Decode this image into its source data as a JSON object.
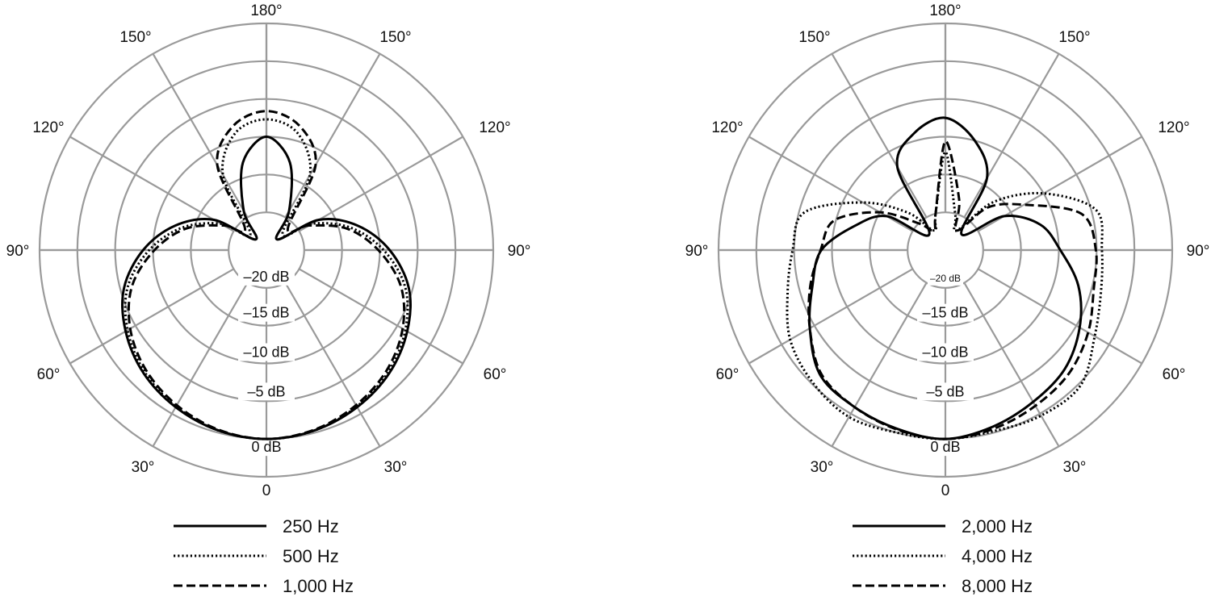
{
  "chart_data": [
    {
      "type": "polar",
      "angle_labels": [
        "180°",
        "150°",
        "150°",
        "120°",
        "120°",
        "90°",
        "90°",
        "60°",
        "60°",
        "30°",
        "30°",
        "0"
      ],
      "radial_labels": [
        "–20 dB",
        "–15 dB",
        "–10 dB",
        "–5 dB",
        "0 dB"
      ],
      "rlim": [
        -25,
        5
      ],
      "ring_values": [
        -20,
        -15,
        -10,
        -5,
        0,
        5
      ],
      "grid": true,
      "grid_color": "#9a9a9a",
      "legend_position": "bottom",
      "angles_deg": [
        0,
        15,
        30,
        45,
        60,
        75,
        90,
        105,
        120,
        135,
        150,
        165,
        180,
        195,
        210,
        225,
        240,
        255,
        270,
        285,
        300,
        315,
        330,
        345
      ],
      "series": [
        {
          "name": "250 Hz",
          "style": "solid",
          "values": [
            0,
            -0.3,
            -1,
            -2,
            -3.5,
            -5.5,
            -8.7,
            -12.5,
            -17,
            -23,
            -19,
            -13,
            -10,
            -13,
            -19,
            -23,
            -17,
            -12.5,
            -8.7,
            -5.5,
            -3.5,
            -2,
            -1,
            -0.3
          ]
        },
        {
          "name": "500 Hz",
          "style": "dotted",
          "values": [
            0,
            -0.3,
            -1.1,
            -2.2,
            -3.8,
            -6,
            -9.5,
            -13.5,
            -18,
            -22,
            -13.5,
            -9,
            -7.7,
            -9,
            -13.5,
            -22,
            -18,
            -13.5,
            -9.5,
            -6,
            -3.8,
            -2.2,
            -1.1,
            -0.3
          ]
        },
        {
          "name": "1,000 Hz",
          "style": "dashed",
          "values": [
            0,
            -0.4,
            -1.3,
            -2.5,
            -4.2,
            -6.6,
            -10.2,
            -14,
            -18.5,
            -21,
            -12,
            -8,
            -6.6,
            -8,
            -12,
            -21,
            -18.5,
            -14,
            -10.2,
            -6.6,
            -4.2,
            -2.5,
            -1.3,
            -0.4
          ]
        }
      ]
    },
    {
      "type": "polar",
      "angle_labels": [
        "180°",
        "150°",
        "150°",
        "120°",
        "120°",
        "90°",
        "90°",
        "60°",
        "60°",
        "30°",
        "30°",
        "0"
      ],
      "radial_labels": [
        "–20 dB",
        "–15 dB",
        "–10 dB",
        "–5 dB",
        "0 dB"
      ],
      "rlim": [
        -25,
        5
      ],
      "ring_values": [
        -20,
        -15,
        -10,
        -5,
        0,
        5
      ],
      "grid": true,
      "grid_color": "#9a9a9a",
      "legend_position": "bottom",
      "angles_deg": [
        0,
        15,
        30,
        45,
        60,
        75,
        90,
        105,
        120,
        135,
        150,
        165,
        180,
        195,
        210,
        225,
        240,
        255,
        270,
        285,
        300,
        315,
        330,
        345
      ],
      "series": [
        {
          "name": "2,000 Hz",
          "style": "solid",
          "values": [
            0,
            -0.8,
            -1.8,
            -2.7,
            -4.5,
            -6.8,
            -9.8,
            -12,
            -16,
            -22,
            -14,
            -10,
            -7.5,
            -9,
            -12.3,
            -22,
            -16,
            -12.6,
            -8.6,
            -6.8,
            -4.3,
            -1.6,
            -1,
            -0.5
          ]
        },
        {
          "name": "4,000 Hz",
          "style": "dotted",
          "values": [
            0,
            -0.2,
            0.3,
            0.3,
            -2.2,
            -3.7,
            -4.3,
            -4.4,
            -10,
            -16,
            -22,
            -20,
            -12,
            -20,
            -22,
            -18,
            -12.4,
            -5.7,
            -4.8,
            -3.4,
            -1.3,
            -0.2,
            0.5,
            0
          ]
        },
        {
          "name": "8,000 Hz",
          "style": "dashed",
          "values": [
            0,
            -0.5,
            -1.2,
            -1.9,
            -3.2,
            -4.7,
            -5.1,
            -6.4,
            -13,
            -17,
            -22,
            -18,
            -10.6,
            -20,
            -22,
            -20,
            -15,
            -9.8,
            -8.5,
            -6.5,
            -4.3,
            -1.8,
            -1,
            -0.4
          ]
        }
      ]
    }
  ]
}
